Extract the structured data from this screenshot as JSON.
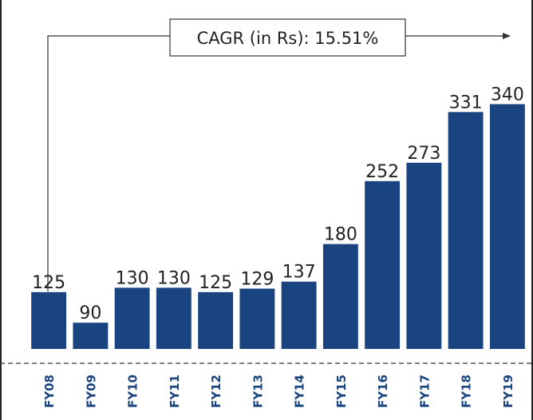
{
  "chart_data": {
    "type": "bar",
    "annotation": "CAGR (in Rs): 15.51%",
    "categories": [
      "FY08",
      "FY09",
      "FY10",
      "FY11",
      "FY12",
      "FY13",
      "FY14",
      "FY15",
      "FY16",
      "FY17",
      "FY18",
      "FY19"
    ],
    "values": [
      125,
      90,
      130,
      130,
      125,
      129,
      137,
      180,
      252,
      273,
      331,
      340
    ],
    "color": "#1a4480",
    "ylim": [
      60,
      345
    ]
  }
}
